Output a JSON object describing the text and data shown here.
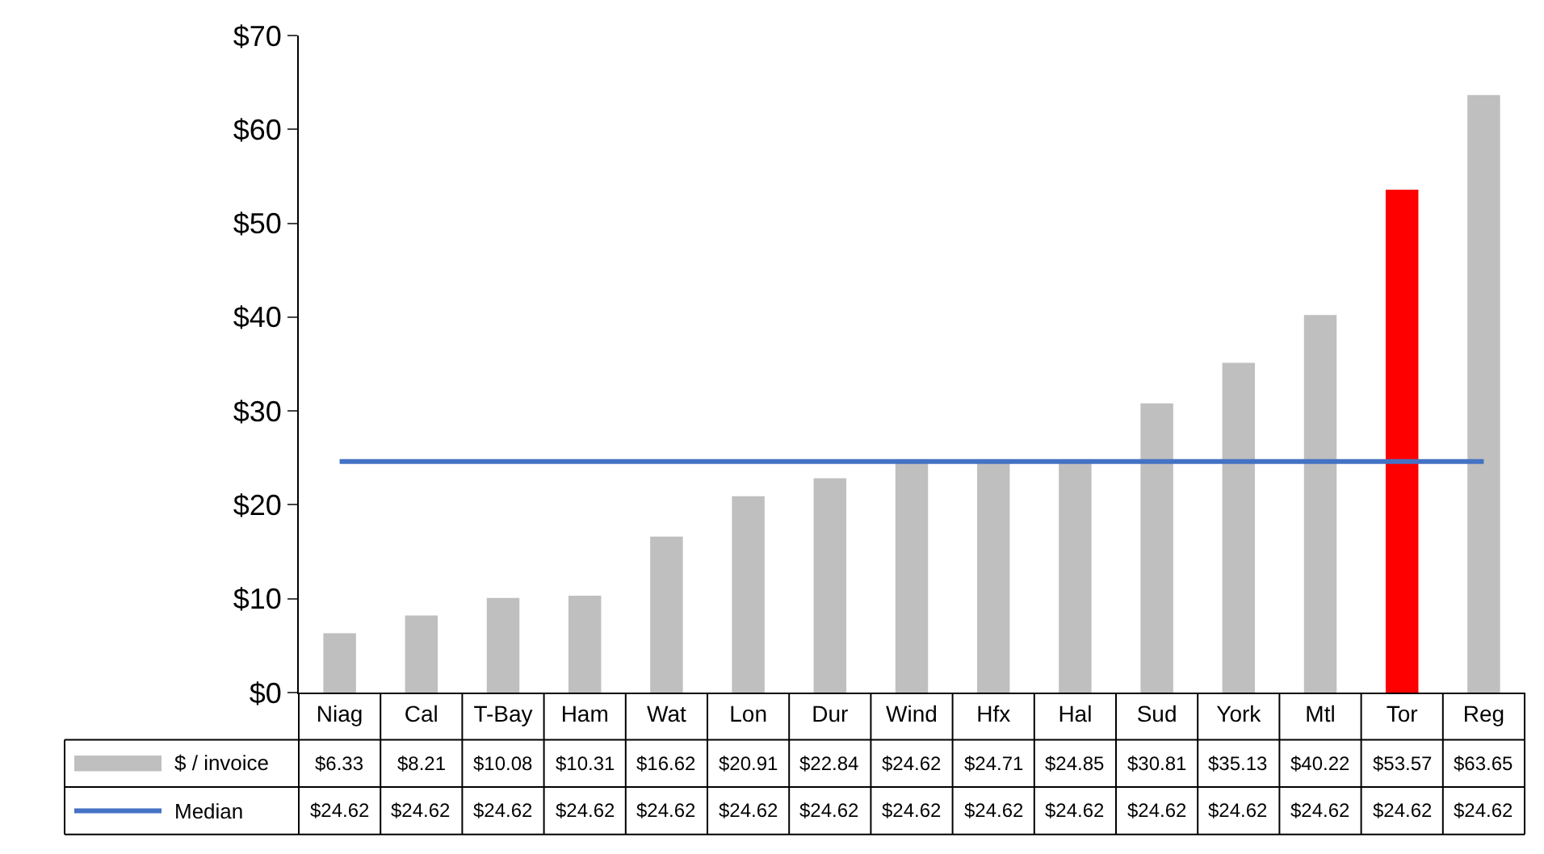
{
  "chart_data": {
    "type": "bar",
    "categories": [
      "Niag",
      "Cal",
      "T-Bay",
      "Ham",
      "Wat",
      "Lon",
      "Dur",
      "Wind",
      "Hfx",
      "Hal",
      "Sud",
      "York",
      "Mtl",
      "Tor",
      "Reg"
    ],
    "series": [
      {
        "name": "$ / invoice",
        "value_labels": [
          "$6.33",
          "$8.21",
          "$10.08",
          "$10.31",
          "$16.62",
          "$20.91",
          "$22.84",
          "$24.62",
          "$24.71",
          "$24.85",
          "$30.81",
          "$35.13",
          "$40.22",
          "$53.57",
          "$63.65"
        ],
        "color": "#bfbfbf",
        "colors": [
          "#bfbfbf",
          "#bfbfbf",
          "#bfbfbf",
          "#bfbfbf",
          "#bfbfbf",
          "#bfbfbf",
          "#bfbfbf",
          "#bfbfbf",
          "#bfbfbf",
          "#bfbfbf",
          "#bfbfbf",
          "#bfbfbf",
          "#bfbfbf",
          "#ff0000",
          "#bfbfbf"
        ],
        "values": [
          6.33,
          8.21,
          10.08,
          10.31,
          16.62,
          20.91,
          22.84,
          24.62,
          24.71,
          24.85,
          30.81,
          35.13,
          40.22,
          53.57,
          63.65
        ]
      },
      {
        "name": "Median",
        "type": "line",
        "value_labels": [
          "$24.62",
          "$24.62",
          "$24.62",
          "$24.62",
          "$24.62",
          "$24.62",
          "$24.62",
          "$24.62",
          "$24.62",
          "$24.62",
          "$24.62",
          "$24.62",
          "$24.62",
          "$24.62",
          "$24.62"
        ],
        "color": "#4472c4",
        "values": [
          24.62,
          24.62,
          24.62,
          24.62,
          24.62,
          24.62,
          24.62,
          24.62,
          24.62,
          24.62,
          24.62,
          24.62,
          24.62,
          24.62,
          24.62
        ]
      }
    ],
    "ylim": [
      0,
      70
    ],
    "yticks": [
      {
        "value": 0,
        "label": "$0"
      },
      {
        "value": 10,
        "label": "$10"
      },
      {
        "value": 20,
        "label": "$20"
      },
      {
        "value": 30,
        "label": "$30"
      },
      {
        "value": 40,
        "label": "$40"
      },
      {
        "value": 50,
        "label": "$50"
      },
      {
        "value": 60,
        "label": "$60"
      },
      {
        "value": 70,
        "label": "$70"
      }
    ],
    "legend": "bottom"
  }
}
